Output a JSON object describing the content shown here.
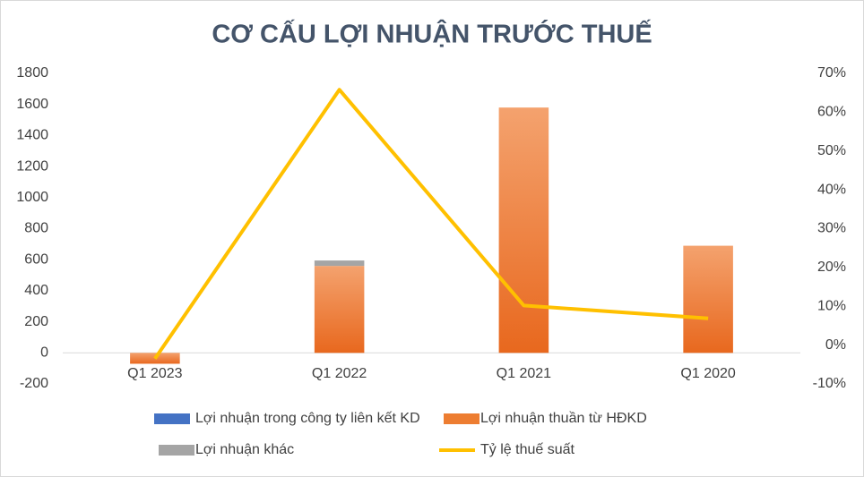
{
  "chart_data": {
    "type": "bar_line",
    "title": "CƠ CẤU LỢI NHUẬN TRƯỚC THUẾ",
    "categories": [
      "Q1 2023",
      "Q1 2022",
      "Q1 2021",
      "Q1 2020"
    ],
    "series": [
      {
        "name": "Lợi nhuận trong công ty liên kết KD",
        "color": "#4472c4",
        "type": "bar",
        "values": [
          0,
          0,
          0,
          0
        ]
      },
      {
        "name": "Lợi nhuận thuần từ HĐKD",
        "color": "#ed7d31",
        "type": "bar",
        "values": [
          -70,
          560,
          1580,
          690
        ]
      },
      {
        "name": "Lợi nhuận khác",
        "color": "#a5a5a5",
        "type": "bar",
        "values": [
          0,
          35,
          0,
          0
        ]
      },
      {
        "name": "Tỷ lệ thuế suất",
        "color": "#ffc000",
        "type": "line",
        "axis": "y2",
        "values": [
          -3.5,
          65.8,
          10.2,
          6.9
        ]
      }
    ],
    "ylim": [
      -200,
      1800
    ],
    "yticks": [
      -200,
      0,
      200,
      400,
      600,
      800,
      1000,
      1200,
      1400,
      1600,
      1800
    ],
    "y2lim": [
      -10,
      70
    ],
    "y2ticks": [
      {
        "value": -10,
        "label": "-10%"
      },
      {
        "value": 0,
        "label": "0%"
      },
      {
        "value": 10,
        "label": "10%"
      },
      {
        "value": 20,
        "label": "20%"
      },
      {
        "value": 30,
        "label": "30%"
      },
      {
        "value": 40,
        "label": "40%"
      },
      {
        "value": 50,
        "label": "50%"
      },
      {
        "value": 60,
        "label": "60%"
      },
      {
        "value": 70,
        "label": "70%"
      }
    ],
    "grid": false,
    "legend": "bottom"
  }
}
